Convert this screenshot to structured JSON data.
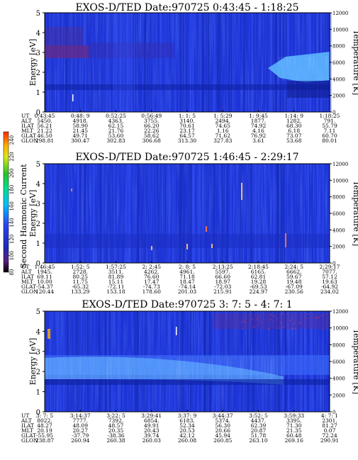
{
  "chart_data": {
    "type": "heatmap",
    "colorbar": {
      "label": "Second Harmonic Current",
      "ticks": [
        "80",
        "100",
        "120",
        "140",
        "160",
        "180",
        "200",
        "220",
        "240"
      ],
      "colors": [
        "#000000",
        "#5a1e7a",
        "#1e2ab8",
        "#2a46f0",
        "#00c0ff",
        "#00e08a",
        "#27c327",
        "#d8e81a",
        "#ffb000",
        "#ff2a00"
      ],
      "range": [
        80,
        250
      ]
    },
    "row_labels": [
      "UT",
      "ALT",
      "ILAT",
      "MLT",
      "GLAT",
      "GLON"
    ],
    "panels": [
      {
        "title": "EXOS-D/TED   Date:970725  0:43:45 - 1:18:25",
        "ylabel": "Energy [eV]",
        "y2label": "Temperature [K]",
        "ylim": [
          0,
          5
        ],
        "y2lim": [
          0,
          12000
        ],
        "yticks": [
          "0",
          "1",
          "2",
          "3",
          "4",
          "5"
        ],
        "y2ticks": [
          "0",
          "2000",
          "4000",
          "6000",
          "8000",
          "10000",
          "12000"
        ],
        "columns": [
          [
            "0:43:45",
            "5450.",
            "56.21",
            "21.22",
            "46.50",
            "298.81"
          ],
          [
            "0:48: 9",
            "4918.",
            "58.90",
            "21.45",
            "49.71",
            "300.47"
          ],
          [
            "0:52:25",
            "4363.",
            "62.15",
            "21.76",
            "53.60",
            "302.83"
          ],
          [
            "0:56:49",
            "3755.",
            "66.20",
            "22.26",
            "58.62",
            "306.68"
          ],
          [
            "1: 1: 5",
            "3140.",
            "70.61",
            "23.17",
            "64.57",
            "313.30"
          ],
          [
            "1: 5:29",
            "2494.",
            "74.65",
            "1.16",
            "71.62",
            "327.83"
          ],
          [
            "1: 9:45",
            "1877.",
            "74.92",
            "4.16",
            "76.92",
            "3.61"
          ],
          [
            "1:14: 9",
            "1282.",
            "68.30",
            "6.18",
            "73.07",
            "53.68"
          ],
          [
            "1:18:25",
            "791.",
            "55.79",
            "7.11",
            "60.70",
            "80.01"
          ]
        ]
      },
      {
        "title": "EXOS-D/TED   Date:970725  1:46:45 - 2:29:17",
        "ylabel": "Energy [eV]",
        "y2label": "Temperature [K]",
        "ylim": [
          0,
          5
        ],
        "y2lim": [
          0,
          12000
        ],
        "yticks": [
          "0",
          "1",
          "2",
          "3",
          "4",
          "5"
        ],
        "y2ticks": [
          "0",
          "2000",
          "4000",
          "6000",
          "8000",
          "10000",
          "12000"
        ],
        "columns": [
          [
            "1:46:45",
            "1945.",
            "69.11",
            "10.00",
            "-54.37",
            "120.44"
          ],
          [
            "1:52: 5",
            "2728.",
            "80.25",
            "11.75",
            "-65.32",
            "133.29"
          ],
          [
            "1:57:25",
            "3511.",
            "81.89",
            "15.11",
            "-72.11",
            "153.18"
          ],
          [
            "2: 2:45",
            "4262.",
            "76.60",
            "17.47",
            "-74.73",
            "178.60"
          ],
          [
            "2: 8: 5",
            "4961.",
            "71.18",
            "18.47",
            "-74.14",
            "201.03"
          ],
          [
            "2:13:25",
            "5597.",
            "66.60",
            "18.97",
            "-72.03",
            "215.91"
          ],
          [
            "2:18:45",
            "6165.",
            "62.81",
            "19.28",
            "-69.53",
            "224.97"
          ],
          [
            "2:24: 5",
            "6662.",
            "59.67",
            "19.48",
            "-67.09",
            "230.56"
          ],
          [
            "2:29:17",
            "7077.",
            "57.12",
            "19.63",
            "-64.92",
            "234.02"
          ]
        ]
      },
      {
        "title": "EXOS-D/TED   Date:970725  3: 7: 5 - 4: 7: 1",
        "ylabel": "Energy [eV]",
        "y2label": "Temperature [K]",
        "ylim": [
          0,
          5
        ],
        "y2lim": [
          0,
          12000
        ],
        "yticks": [
          "0",
          "1",
          "2",
          "3",
          "4",
          "5"
        ],
        "y2ticks": [
          "0",
          "2000",
          "4000",
          "6000",
          "8000",
          "10000",
          "12000"
        ],
        "columns": [
          [
            "3: 7: 5",
            "8022.",
            "48.27",
            "20.19",
            "-55.95",
            "238.87"
          ],
          [
            "3:14:37",
            "7777.",
            "48.09",
            "20.27",
            "-37.79",
            "260.94"
          ],
          [
            "3:22: 5",
            "7392.",
            "48.57",
            "20.35",
            "-38.36",
            "260.38"
          ],
          [
            "3:29:41",
            "6854.",
            "49.91",
            "20.43",
            "39.74",
            "260.03"
          ],
          [
            "3:37: 9",
            "6183.",
            "52.34",
            "20.53",
            "42.12",
            "260.08"
          ],
          [
            "3:44:37",
            "5374.",
            "56.30",
            "20.66",
            "45.94",
            "260.85"
          ],
          [
            "3:52: 5",
            "4437.",
            "62.39",
            "20.87",
            "51.78",
            "263.10"
          ],
          [
            "3:59:33",
            "3395.",
            "71.30",
            "21.35",
            "60.48",
            "269.16"
          ],
          [
            "4: 7: 1",
            "2301.",
            "81.27",
            "0.07",
            "72.24",
            "290.91"
          ]
        ]
      }
    ]
  }
}
